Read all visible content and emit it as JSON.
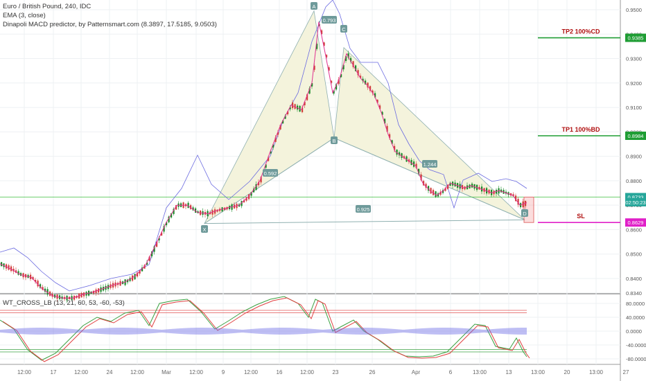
{
  "header": {
    "symbol_line": "Euro / British Pound, 240, IDC",
    "ema_line": "EMA (3, close)",
    "predictor_line": "Dinapoli MACD predictor, by Patternsmart.com (8.3897, 17.5185, 9.0503)"
  },
  "oscillator": {
    "title": "WT_CROSS_LB (13, 21, 60, 53, -60, -53)",
    "ticks": [
      "80.0000",
      "40.0000",
      "0.0000",
      "-40.0000",
      "-80.0000"
    ],
    "levels": [
      60,
      53,
      -53,
      -60
    ]
  },
  "price_axis": {
    "ticks": [
      "0.9500",
      "0.9400",
      "0.9300",
      "0.9200",
      "0.9100",
      "0.9000",
      "0.8900",
      "0.8800",
      "0.8700",
      "0.8600",
      "0.8500",
      "0.8400",
      "0.8340"
    ],
    "labels": [
      {
        "text": "0.9385",
        "color": "#1f9d34",
        "price": 0.9385
      },
      {
        "text": "0.8984",
        "color": "#1f9d34",
        "price": 0.8984
      },
      {
        "text": "0.8733",
        "color": "#26a69a",
        "price": 0.8733
      },
      {
        "text": "02:50:23",
        "color": "#26a69a",
        "price": 0.8712
      },
      {
        "text": "0.8629",
        "color": "#e020c8",
        "price": 0.8629
      }
    ]
  },
  "time_axis": {
    "labels": [
      "12:00",
      "17",
      "12:00",
      "24",
      "12:00",
      "Mar",
      "12:00",
      "9",
      "12:00",
      "16",
      "12:00",
      "23",
      "26",
      "Apr",
      "6",
      "13:00",
      "13",
      "13:00",
      "20",
      "13:00",
      "27"
    ]
  },
  "targets": [
    {
      "label": "TP2  100%CD",
      "price": 0.9385,
      "color": "#1f9d34"
    },
    {
      "label": "TP1  100%BD",
      "price": 0.8984,
      "color": "#1f9d34"
    },
    {
      "label": "SL",
      "price": 0.8629,
      "color": "#e020c8"
    }
  ],
  "pattern": {
    "points": [
      {
        "label": "X",
        "price": 0.8625
      },
      {
        "label": "A",
        "price": 0.9495
      },
      {
        "label": "B",
        "price": 0.8975
      },
      {
        "label": "C",
        "price": 0.9345
      },
      {
        "label": "D",
        "price": 0.864
      }
    ],
    "ratios": [
      "0.793",
      "0.592",
      "1.244",
      "0.925"
    ]
  },
  "colors": {
    "bull": "#26a69a",
    "bear": "#d0403a",
    "bull_candle": "#1b8a2a",
    "ema": "#e03090",
    "band": "#6a6ae0",
    "pattern_fill": "#f4f3dc",
    "pattern_line": "#8fb0b0",
    "label_bg": "#6e9a9a"
  },
  "chart_data": {
    "type": "line",
    "title": "Euro / British Pound, 240, IDC",
    "xlabel": "",
    "ylabel": "",
    "ylim": [
      0.8315,
      0.9525
    ],
    "series": [
      {
        "name": "EMA (3, close)",
        "x": [
          0,
          15,
          30,
          45,
          60,
          75,
          90,
          105,
          120,
          135,
          150,
          165,
          180,
          195,
          210,
          225,
          240,
          255,
          270,
          285,
          300,
          315,
          330,
          345,
          360,
          375,
          390,
          405,
          420,
          435,
          450,
          460,
          470,
          480,
          490,
          500,
          510,
          520,
          530,
          540,
          550,
          560,
          570,
          580,
          590,
          600,
          610,
          620,
          630,
          640,
          650,
          660,
          670,
          680,
          690,
          700,
          710,
          720,
          730,
          740,
          750,
          760
        ],
        "values": [
          0.846,
          0.844,
          0.8415,
          0.8405,
          0.836,
          0.833,
          0.832,
          0.832,
          0.8335,
          0.8345,
          0.836,
          0.8375,
          0.8385,
          0.841,
          0.8455,
          0.854,
          0.863,
          0.87,
          0.87,
          0.867,
          0.8665,
          0.868,
          0.869,
          0.87,
          0.874,
          0.88,
          0.892,
          0.903,
          0.911,
          0.909,
          0.92,
          0.945,
          0.931,
          0.916,
          0.922,
          0.932,
          0.927,
          0.922,
          0.919,
          0.915,
          0.908,
          0.899,
          0.892,
          0.89,
          0.888,
          0.886,
          0.879,
          0.876,
          0.874,
          0.876,
          0.879,
          0.878,
          0.877,
          0.878,
          0.877,
          0.876,
          0.875,
          0.876,
          0.875,
          0.874,
          0.87,
          0.871
        ]
      }
    ]
  }
}
